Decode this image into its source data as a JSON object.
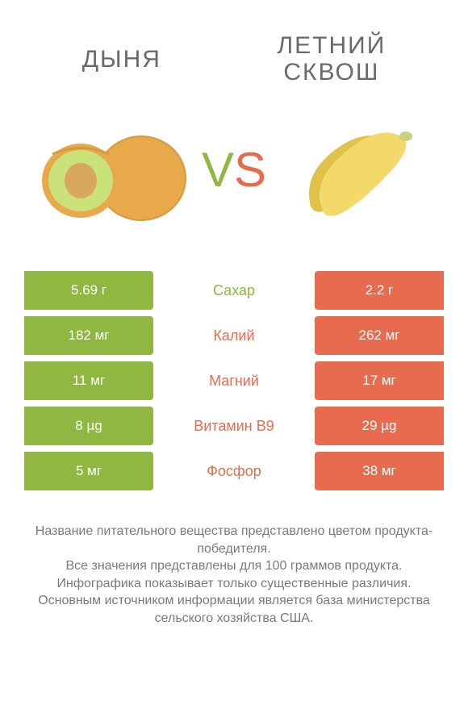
{
  "colors": {
    "left_product": "#8fb741",
    "right_product": "#e76b4f",
    "bg": "#ffffff",
    "text": "#6a6a6a",
    "cell_text": "#ffffff"
  },
  "titles": {
    "left": "ДЫНЯ",
    "right": "ЛЕТНИЙ СКВОШ"
  },
  "vs": {
    "v": "V",
    "s": "S"
  },
  "rows": [
    {
      "left": "5.69 г",
      "label": "Сахар",
      "right": "2.2 г",
      "winner": "left"
    },
    {
      "left": "182 мг",
      "label": "Калий",
      "right": "262 мг",
      "winner": "right"
    },
    {
      "left": "11 мг",
      "label": "Магний",
      "right": "17 мг",
      "winner": "right"
    },
    {
      "left": "8 µg",
      "label": "Витамин B9",
      "right": "29 µg",
      "winner": "right"
    },
    {
      "left": "5 мг",
      "label": "Фосфор",
      "right": "38 мг",
      "winner": "right"
    }
  ],
  "footer": {
    "line1": "Название питательного вещества представлено цветом продукта-победителя.",
    "line2": "Все значения представлены для 100 граммов продукта.",
    "line3": "Инфографика показывает только существенные различия.",
    "line4": "Основным источником информации является база министерства сельского хозяйства США."
  },
  "illustrations": {
    "melon": {
      "outer": "#e8a94a",
      "inner": "#c9e27a",
      "seed_area": "#d9a760",
      "rind": "#d69a3c"
    },
    "squash": {
      "body": "#f3d96a",
      "shadow": "#e0c24a",
      "stem": "#c9d27a"
    }
  }
}
